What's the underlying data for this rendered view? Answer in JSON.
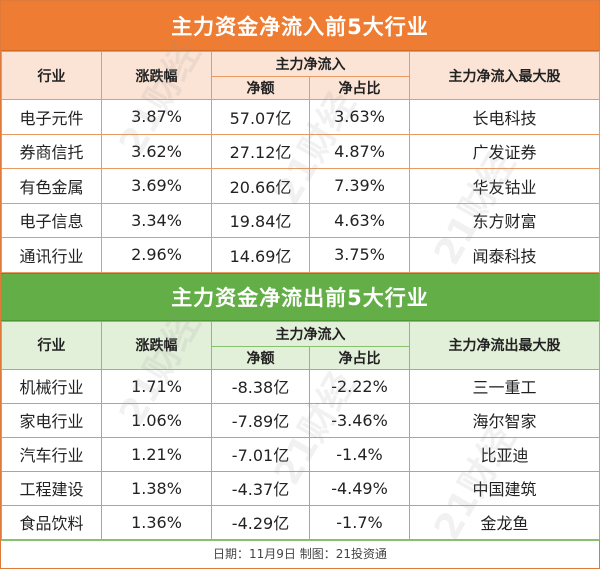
{
  "inflow": {
    "title": "主力资金净流入前5大行业",
    "headers": {
      "industry": "行业",
      "change": "涨跌幅",
      "net": "主力净流入",
      "amount": "净额",
      "ratio": "净占比",
      "top_stock": "主力净流入最大股"
    },
    "rows": [
      {
        "industry": "电子元件",
        "change": "3.87%",
        "amount": "57.07亿",
        "ratio": "3.63%",
        "stock": "长电科技"
      },
      {
        "industry": "券商信托",
        "change": "3.62%",
        "amount": "27.12亿",
        "ratio": "4.87%",
        "stock": "广发证券"
      },
      {
        "industry": "有色金属",
        "change": "3.69%",
        "amount": "20.66亿",
        "ratio": "7.39%",
        "stock": "华友钴业"
      },
      {
        "industry": "电子信息",
        "change": "3.34%",
        "amount": "19.84亿",
        "ratio": "4.63%",
        "stock": "东方财富"
      },
      {
        "industry": "通讯行业",
        "change": "2.96%",
        "amount": "14.69亿",
        "ratio": "3.75%",
        "stock": "闻泰科技"
      }
    ]
  },
  "outflow": {
    "title": "主力资金净流出前5大行业",
    "headers": {
      "industry": "行业",
      "change": "涨跌幅",
      "net": "主力净流入",
      "amount": "净额",
      "ratio": "净占比",
      "top_stock": "主力净流出最大股"
    },
    "rows": [
      {
        "industry": "机械行业",
        "change": "1.71%",
        "amount": "-8.38亿",
        "ratio": "-2.22%",
        "stock": "三一重工"
      },
      {
        "industry": "家电行业",
        "change": "1.06%",
        "amount": "-7.89亿",
        "ratio": "-3.46%",
        "stock": "海尔智家"
      },
      {
        "industry": "汽车行业",
        "change": "1.21%",
        "amount": "-7.01亿",
        "ratio": "-1.4%",
        "stock": "比亚迪"
      },
      {
        "industry": "工程建设",
        "change": "1.38%",
        "amount": "-4.37亿",
        "ratio": "-4.49%",
        "stock": "中国建筑"
      },
      {
        "industry": "食品饮料",
        "change": "1.36%",
        "amount": "-4.29亿",
        "ratio": "-1.7%",
        "stock": "金龙鱼"
      }
    ]
  },
  "footer": "日期：11月9日 制图：21投资通",
  "watermark": "21财经",
  "colors": {
    "inflow_accent": "#ee7d33",
    "outflow_accent": "#63ae47"
  }
}
